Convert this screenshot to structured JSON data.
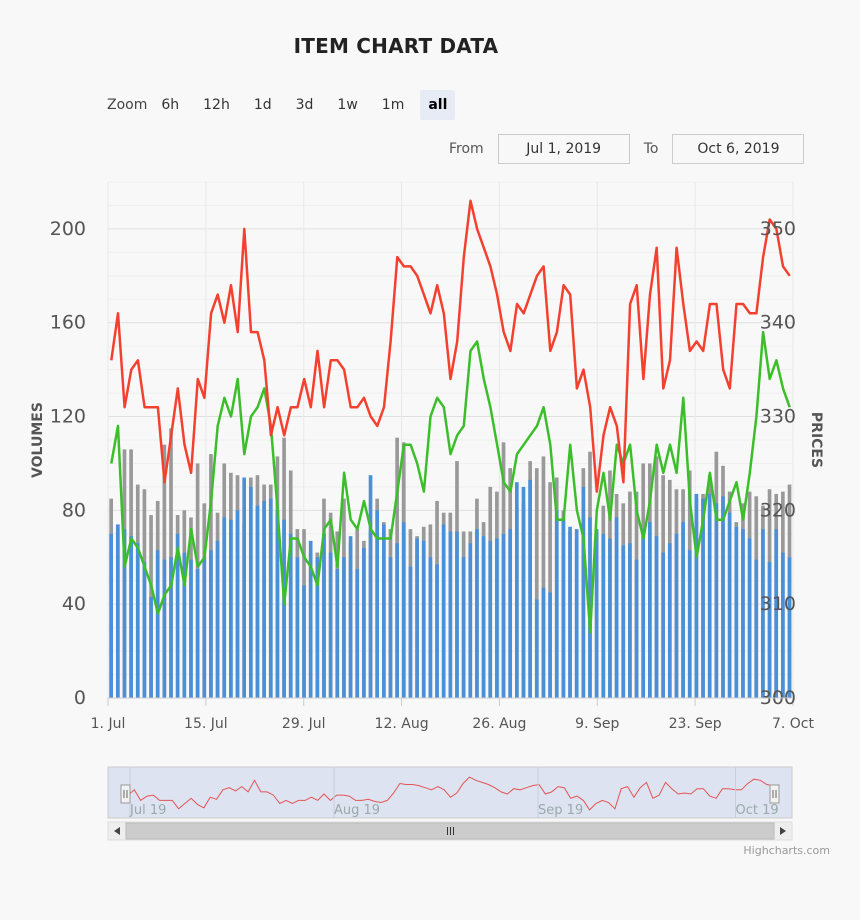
{
  "chart_data": {
    "type": "line",
    "title": "ITEM CHART DATA",
    "zoom": {
      "label": "Zoom",
      "buttons": [
        "6h",
        "12h",
        "1d",
        "3d",
        "1w",
        "1m",
        "all"
      ],
      "selected": "all"
    },
    "range": {
      "from_label": "From",
      "from_value": "Jul 1, 2019",
      "to_label": "To",
      "to_value": "Oct 6, 2019"
    },
    "y_left": {
      "label": "VOLUMES",
      "ticks": [
        0,
        40,
        80,
        120,
        160,
        200
      ],
      "range": [
        0,
        220
      ]
    },
    "y_right": {
      "label": "PRICES",
      "ticks": [
        300,
        310,
        320,
        330,
        340,
        350
      ],
      "range": [
        300,
        355
      ]
    },
    "x_axis": {
      "ticks": [
        "1. Jul",
        "15. Jul",
        "29. Jul",
        "12. Aug",
        "26. Aug",
        "9. Sep",
        "23. Sep",
        "7. Oct"
      ],
      "start": "2019-07-01",
      "end": "2019-10-07"
    },
    "navigator": {
      "labels": [
        "Jul 19",
        "Aug 19",
        "Sep 19",
        "Oct 19"
      ]
    },
    "colors": {
      "bar_blue": "#4a90d9",
      "bar_gray": "#999999",
      "line_red": "#f4412f",
      "line_green": "#3cbe2b",
      "nav_line": "#e35555",
      "nav_bg": "#dde3f0"
    },
    "series": [
      {
        "name": "red",
        "axis": "prices",
        "values": [
          336,
          341,
          331,
          335,
          336,
          331,
          331,
          331,
          323,
          328,
          333,
          327,
          324,
          334,
          332,
          341,
          343,
          340,
          344,
          339,
          350,
          339,
          339,
          336,
          328,
          331,
          328,
          331,
          331,
          334,
          331,
          337,
          331,
          336,
          336,
          335,
          331,
          331,
          332,
          330,
          329,
          331,
          338,
          347,
          346,
          346,
          345,
          343,
          341,
          344,
          341,
          334,
          338,
          347,
          353,
          350,
          348,
          346,
          343,
          339,
          337,
          342,
          341,
          343,
          345,
          346,
          337,
          339,
          344,
          343,
          333,
          335,
          331,
          322,
          328,
          331,
          329,
          323,
          342,
          344,
          334,
          343,
          348,
          333,
          336,
          348,
          342,
          337,
          338,
          337,
          342,
          342,
          335,
          333,
          342,
          342,
          341,
          341,
          347,
          351,
          350,
          346,
          345
        ]
      },
      {
        "name": "green",
        "axis": "prices",
        "values": [
          325,
          329,
          314,
          317,
          316,
          314,
          312,
          309,
          311,
          312,
          316,
          312,
          318,
          314,
          315,
          321,
          329,
          332,
          330,
          334,
          326,
          330,
          331,
          333,
          329,
          320,
          310,
          317,
          317,
          315,
          314,
          312,
          318,
          319,
          314,
          324,
          319,
          318,
          321,
          318,
          317,
          317,
          317,
          322,
          327,
          327,
          325,
          322,
          330,
          332,
          331,
          326,
          328,
          329,
          337,
          338,
          334,
          331,
          327,
          323,
          322,
          326,
          327,
          328,
          329,
          331,
          327,
          319,
          319,
          327,
          320,
          317,
          307,
          320,
          324,
          319,
          327,
          325,
          327,
          320,
          317,
          321,
          327,
          324,
          327,
          324,
          332,
          321,
          315,
          319,
          324,
          319,
          319,
          321,
          323,
          319,
          324,
          330,
          339,
          334,
          336,
          333,
          331
        ]
      },
      {
        "name": "volume-blue",
        "axis": "volumes",
        "values": [
          70,
          74,
          72,
          69,
          66,
          58,
          43,
          63,
          59,
          60,
          70,
          62,
          59,
          55,
          60,
          63,
          67,
          77,
          76,
          80,
          94,
          90,
          82,
          84,
          85,
          80,
          76,
          70,
          60,
          48,
          67,
          60,
          70,
          62,
          55,
          60,
          69,
          55,
          64,
          95,
          80,
          74,
          60,
          66,
          75,
          56,
          68,
          67,
          60,
          57,
          74,
          71,
          71,
          60,
          66,
          72,
          69,
          67,
          68,
          70,
          72,
          92,
          90,
          93,
          42,
          47,
          45,
          80,
          76,
          73,
          72,
          90,
          77,
          72,
          70,
          68,
          77,
          65,
          66,
          59,
          72,
          75,
          69,
          62,
          66,
          70,
          75,
          63,
          87,
          85,
          87,
          83,
          86,
          79,
          73,
          72,
          68,
          59,
          72,
          58,
          72,
          62,
          60
        ]
      },
      {
        "name": "volume-gray",
        "axis": "volumes",
        "values": [
          85,
          74,
          106,
          106,
          91,
          89,
          78,
          84,
          108,
          115,
          78,
          80,
          77,
          100,
          83,
          104,
          79,
          100,
          96,
          95,
          74,
          94,
          95,
          91,
          91,
          103,
          111,
          97,
          72,
          72,
          62,
          62,
          85,
          79,
          71,
          85,
          66,
          72,
          67,
          71,
          85,
          75,
          72,
          111,
          109,
          72,
          69,
          73,
          74,
          84,
          79,
          79,
          101,
          71,
          71,
          85,
          75,
          90,
          88,
          109,
          98,
          81,
          83,
          101,
          98,
          103,
          92,
          94,
          80,
          71,
          68,
          98,
          105,
          64,
          82,
          97,
          87,
          83,
          88,
          88,
          100,
          100,
          103,
          95,
          93,
          89,
          89,
          97,
          85,
          87,
          95,
          105,
          99,
          88,
          75,
          83,
          88,
          86,
          82,
          89,
          87,
          88,
          91
        ]
      }
    ]
  }
}
